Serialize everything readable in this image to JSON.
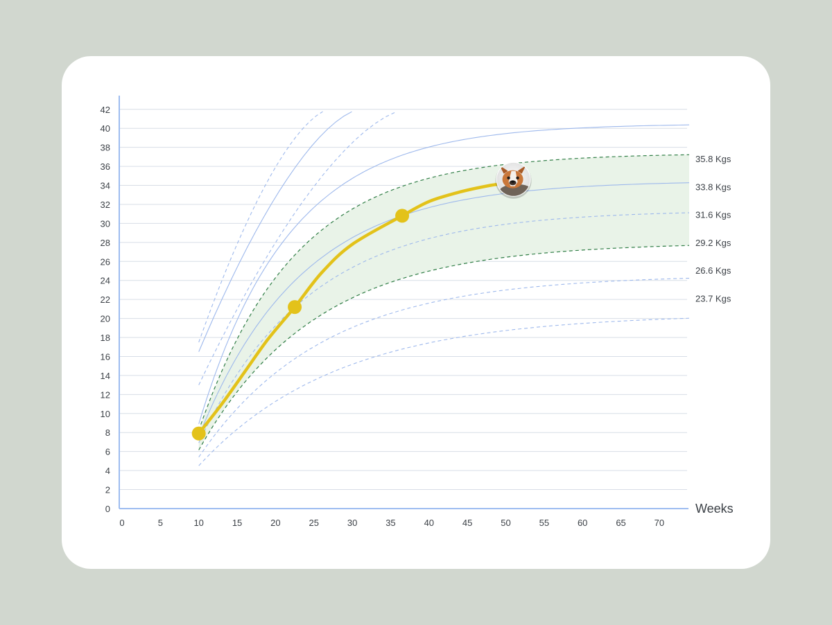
{
  "chart_data": {
    "type": "line",
    "xlabel": "Weeks",
    "ylabel": "",
    "xlim": [
      0,
      73
    ],
    "ylim": [
      0,
      42
    ],
    "x_ticks": [
      "0",
      "5",
      "10",
      "15",
      "20",
      "25",
      "30",
      "35",
      "40",
      "45",
      "50",
      "55",
      "60",
      "65",
      "70"
    ],
    "y_ticks": [
      "0",
      "2",
      "4",
      "6",
      "8",
      "10",
      "12",
      "14",
      "16",
      "18",
      "20",
      "22",
      "24",
      "26",
      "28",
      "30",
      "32",
      "34",
      "36",
      "38",
      "40",
      "42"
    ],
    "grid": true,
    "band": {
      "name": "",
      "upper": 37.4,
      "lower": 28.0,
      "color": "#e9f3e8"
    },
    "percentile_curves": [
      {
        "asymptote": 40.5,
        "k": 0.085,
        "style": "solid",
        "color": "#9db8ec",
        "label": ""
      },
      {
        "asymptote": 37.4,
        "k": 0.08,
        "style": "dashed",
        "color": "#2f7d45",
        "label": "35.8 Kgs"
      },
      {
        "asymptote": 34.5,
        "k": 0.075,
        "style": "solid",
        "color": "#9db8ec",
        "label": "33.8 Kgs"
      },
      {
        "asymptote": 31.4,
        "k": 0.07,
        "style": "dashed",
        "color": "#9db8ec",
        "label": "31.6 Kgs"
      },
      {
        "asymptote": 28.0,
        "k": 0.066,
        "style": "dashed",
        "color": "#2f7d45",
        "label": "29.2 Kgs"
      },
      {
        "asymptote": 24.6,
        "k": 0.062,
        "style": "dashed",
        "color": "#9db8ec",
        "label": "26.6 Kgs"
      }
    ],
    "right_labels": [
      "35.8 Kgs",
      "33.8 Kgs",
      "31.6 Kgs",
      "29.2 Kgs",
      "26.6 Kgs",
      "23.7 Kgs"
    ],
    "steep_curves": [
      {
        "x": [
          10,
          27
        ],
        "y": [
          17.5,
          42
        ],
        "style": "dashed",
        "color": "#9db8ec"
      },
      {
        "x": [
          10,
          31
        ],
        "y": [
          16.5,
          42
        ],
        "style": "solid",
        "color": "#9db8ec"
      },
      {
        "x": [
          10,
          37
        ],
        "y": [
          13.0,
          42
        ],
        "style": "dashed",
        "color": "#9db8ec"
      }
    ],
    "series": [
      {
        "color": "#e3c21a",
        "x": [
          10,
          13,
          16,
          19,
          22.5,
          26,
          30,
          36.5,
          40,
          44,
          48,
          50
        ],
        "y": [
          7.9,
          11.0,
          14.4,
          17.8,
          21.2,
          24.8,
          27.8,
          30.8,
          32.3,
          33.3,
          34.0,
          34.2
        ],
        "markers": [
          {
            "x": 10,
            "y": 7.9
          },
          {
            "x": 22.5,
            "y": 21.2
          },
          {
            "x": 36.5,
            "y": 30.8
          }
        ],
        "endpoint_icon": "dog-avatar-icon",
        "endpoint": {
          "x": 51,
          "y": 34.2
        }
      }
    ]
  }
}
